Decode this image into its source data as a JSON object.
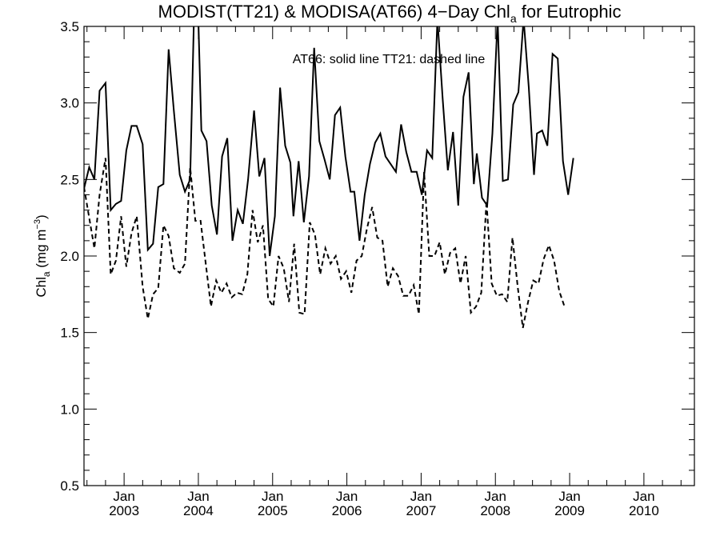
{
  "chart_data": {
    "type": "line",
    "title": {
      "main": "MODIST(TT21) & MODISA(AT66) 4−Day Chl",
      "sub": "a",
      "rest": " for Eutrophic"
    },
    "ylabel": {
      "main": "Chl",
      "sub": "a",
      "unit_pre": " (mg m",
      "unit_sup": "−3",
      "unit_post": ")"
    },
    "annotation": "AT66: solid line   TT21: dashed line",
    "ylim": [
      0.5,
      3.5
    ],
    "xlim": [
      2002.46,
      2010.68
    ],
    "yticks": [
      {
        "value": 0.5,
        "label": "0.5"
      },
      {
        "value": 1.0,
        "label": "1.0"
      },
      {
        "value": 1.5,
        "label": "1.5"
      },
      {
        "value": 2.0,
        "label": "2.0"
      },
      {
        "value": 2.5,
        "label": "2.5"
      },
      {
        "value": 3.0,
        "label": "3.0"
      },
      {
        "value": 3.5,
        "label": "3.5"
      }
    ],
    "xticks": [
      {
        "value": 2003.0,
        "line1": "Jan",
        "line2": "2003"
      },
      {
        "value": 2004.0,
        "line1": "Jan",
        "line2": "2004"
      },
      {
        "value": 2005.0,
        "line1": "Jan",
        "line2": "2005"
      },
      {
        "value": 2006.0,
        "line1": "Jan",
        "line2": "2006"
      },
      {
        "value": 2007.0,
        "line1": "Jan",
        "line2": "2007"
      },
      {
        "value": 2008.0,
        "line1": "Jan",
        "line2": "2008"
      },
      {
        "value": 2009.0,
        "line1": "Jan",
        "line2": "2009"
      },
      {
        "value": 2010.0,
        "line1": "Jan",
        "line2": "2010"
      }
    ],
    "series": [
      {
        "name": "AT66",
        "style": "solid",
        "points": [
          [
            2002.46,
            2.44
          ],
          [
            2002.53,
            2.58
          ],
          [
            2002.6,
            2.5
          ],
          [
            2002.67,
            3.08
          ],
          [
            2002.75,
            3.13
          ],
          [
            2002.82,
            2.3
          ],
          [
            2002.89,
            2.34
          ],
          [
            2002.96,
            2.36
          ],
          [
            2003.03,
            2.69
          ],
          [
            2003.1,
            2.85
          ],
          [
            2003.17,
            2.85
          ],
          [
            2003.25,
            2.73
          ],
          [
            2003.32,
            2.04
          ],
          [
            2003.39,
            2.08
          ],
          [
            2003.46,
            2.45
          ],
          [
            2003.53,
            2.47
          ],
          [
            2003.6,
            3.35
          ],
          [
            2003.67,
            2.95
          ],
          [
            2003.75,
            2.53
          ],
          [
            2003.82,
            2.42
          ],
          [
            2003.89,
            2.5
          ],
          [
            2003.94,
            3.55
          ],
          [
            2004.0,
            3.55
          ],
          [
            2004.04,
            2.82
          ],
          [
            2004.11,
            2.75
          ],
          [
            2004.18,
            2.33
          ],
          [
            2004.25,
            2.14
          ],
          [
            2004.32,
            2.65
          ],
          [
            2004.39,
            2.77
          ],
          [
            2004.46,
            2.1
          ],
          [
            2004.53,
            2.3
          ],
          [
            2004.6,
            2.21
          ],
          [
            2004.67,
            2.5
          ],
          [
            2004.75,
            2.95
          ],
          [
            2004.82,
            2.52
          ],
          [
            2004.89,
            2.64
          ],
          [
            2004.96,
            2.0
          ],
          [
            2005.03,
            2.26
          ],
          [
            2005.1,
            3.1
          ],
          [
            2005.17,
            2.72
          ],
          [
            2005.24,
            2.61
          ],
          [
            2005.28,
            2.26
          ],
          [
            2005.35,
            2.62
          ],
          [
            2005.42,
            2.22
          ],
          [
            2005.49,
            2.52
          ],
          [
            2005.56,
            3.36
          ],
          [
            2005.63,
            2.75
          ],
          [
            2005.7,
            2.63
          ],
          [
            2005.77,
            2.5
          ],
          [
            2005.84,
            2.92
          ],
          [
            2005.91,
            2.97
          ],
          [
            2005.98,
            2.65
          ],
          [
            2006.05,
            2.42
          ],
          [
            2006.1,
            2.42
          ],
          [
            2006.17,
            2.1
          ],
          [
            2006.24,
            2.4
          ],
          [
            2006.31,
            2.6
          ],
          [
            2006.38,
            2.74
          ],
          [
            2006.45,
            2.8
          ],
          [
            2006.52,
            2.65
          ],
          [
            2006.59,
            2.6
          ],
          [
            2006.66,
            2.55
          ],
          [
            2006.73,
            2.86
          ],
          [
            2006.8,
            2.68
          ],
          [
            2006.87,
            2.55
          ],
          [
            2006.94,
            2.55
          ],
          [
            2007.01,
            2.4
          ],
          [
            2007.08,
            2.69
          ],
          [
            2007.15,
            2.64
          ],
          [
            2007.22,
            3.55
          ],
          [
            2007.29,
            3.03
          ],
          [
            2007.36,
            2.56
          ],
          [
            2007.43,
            2.81
          ],
          [
            2007.5,
            2.33
          ],
          [
            2007.57,
            3.04
          ],
          [
            2007.64,
            3.2
          ],
          [
            2007.71,
            2.47
          ],
          [
            2007.75,
            2.67
          ],
          [
            2007.82,
            2.38
          ],
          [
            2007.89,
            2.33
          ],
          [
            2007.96,
            2.8
          ],
          [
            2008.03,
            3.55
          ],
          [
            2008.1,
            2.49
          ],
          [
            2008.17,
            2.5
          ],
          [
            2008.24,
            2.99
          ],
          [
            2008.31,
            3.07
          ],
          [
            2008.38,
            3.55
          ],
          [
            2008.45,
            3.1
          ],
          [
            2008.52,
            2.53
          ],
          [
            2008.56,
            2.8
          ],
          [
            2008.63,
            2.82
          ],
          [
            2008.7,
            2.72
          ],
          [
            2008.77,
            3.32
          ],
          [
            2008.84,
            3.29
          ],
          [
            2008.91,
            2.62
          ],
          [
            2008.98,
            2.4
          ],
          [
            2009.05,
            2.64
          ]
        ]
      },
      {
        "name": "TT21",
        "style": "dashed",
        "points": [
          [
            2002.46,
            2.45
          ],
          [
            2002.53,
            2.25
          ],
          [
            2002.6,
            2.05
          ],
          [
            2002.67,
            2.4
          ],
          [
            2002.75,
            2.64
          ],
          [
            2002.82,
            1.88
          ],
          [
            2002.89,
            1.97
          ],
          [
            2002.96,
            2.26
          ],
          [
            2003.03,
            1.93
          ],
          [
            2003.1,
            2.15
          ],
          [
            2003.17,
            2.26
          ],
          [
            2003.25,
            1.8
          ],
          [
            2003.32,
            1.59
          ],
          [
            2003.39,
            1.75
          ],
          [
            2003.46,
            1.79
          ],
          [
            2003.53,
            2.2
          ],
          [
            2003.6,
            2.13
          ],
          [
            2003.67,
            1.92
          ],
          [
            2003.75,
            1.89
          ],
          [
            2003.82,
            1.95
          ],
          [
            2003.89,
            2.58
          ],
          [
            2003.96,
            2.23
          ],
          [
            2004.03,
            2.23
          ],
          [
            2004.1,
            1.95
          ],
          [
            2004.17,
            1.67
          ],
          [
            2004.24,
            1.84
          ],
          [
            2004.31,
            1.76
          ],
          [
            2004.38,
            1.82
          ],
          [
            2004.45,
            1.73
          ],
          [
            2004.52,
            1.76
          ],
          [
            2004.59,
            1.75
          ],
          [
            2004.66,
            1.88
          ],
          [
            2004.73,
            2.3
          ],
          [
            2004.8,
            2.09
          ],
          [
            2004.87,
            2.2
          ],
          [
            2004.94,
            1.72
          ],
          [
            2005.01,
            1.67
          ],
          [
            2005.08,
            2.0
          ],
          [
            2005.15,
            1.92
          ],
          [
            2005.22,
            1.7
          ],
          [
            2005.29,
            2.08
          ],
          [
            2005.36,
            1.63
          ],
          [
            2005.43,
            1.62
          ],
          [
            2005.5,
            2.22
          ],
          [
            2005.57,
            2.14
          ],
          [
            2005.64,
            1.88
          ],
          [
            2005.71,
            2.05
          ],
          [
            2005.78,
            1.95
          ],
          [
            2005.85,
            2.0
          ],
          [
            2005.92,
            1.85
          ],
          [
            2005.99,
            1.9
          ],
          [
            2006.06,
            1.76
          ],
          [
            2006.13,
            1.97
          ],
          [
            2006.2,
            2.0
          ],
          [
            2006.27,
            2.18
          ],
          [
            2006.34,
            2.32
          ],
          [
            2006.41,
            2.12
          ],
          [
            2006.48,
            2.1
          ],
          [
            2006.55,
            1.8
          ],
          [
            2006.62,
            1.92
          ],
          [
            2006.69,
            1.87
          ],
          [
            2006.76,
            1.74
          ],
          [
            2006.83,
            1.74
          ],
          [
            2006.9,
            1.81
          ],
          [
            2006.97,
            1.62
          ],
          [
            2007.04,
            2.55
          ],
          [
            2007.11,
            2.0
          ],
          [
            2007.18,
            2.0
          ],
          [
            2007.25,
            2.09
          ],
          [
            2007.32,
            1.88
          ],
          [
            2007.39,
            2.02
          ],
          [
            2007.46,
            2.05
          ],
          [
            2007.53,
            1.82
          ],
          [
            2007.6,
            2.0
          ],
          [
            2007.67,
            1.63
          ],
          [
            2007.74,
            1.67
          ],
          [
            2007.81,
            1.76
          ],
          [
            2007.88,
            2.36
          ],
          [
            2007.95,
            1.82
          ],
          [
            2008.02,
            1.74
          ],
          [
            2008.09,
            1.75
          ],
          [
            2008.16,
            1.7
          ],
          [
            2008.23,
            2.12
          ],
          [
            2008.3,
            1.8
          ],
          [
            2008.37,
            1.53
          ],
          [
            2008.44,
            1.7
          ],
          [
            2008.51,
            1.84
          ],
          [
            2008.58,
            1.82
          ],
          [
            2008.65,
            1.98
          ],
          [
            2008.72,
            2.07
          ],
          [
            2008.79,
            1.97
          ],
          [
            2008.86,
            1.77
          ],
          [
            2008.93,
            1.67
          ]
        ]
      }
    ]
  }
}
